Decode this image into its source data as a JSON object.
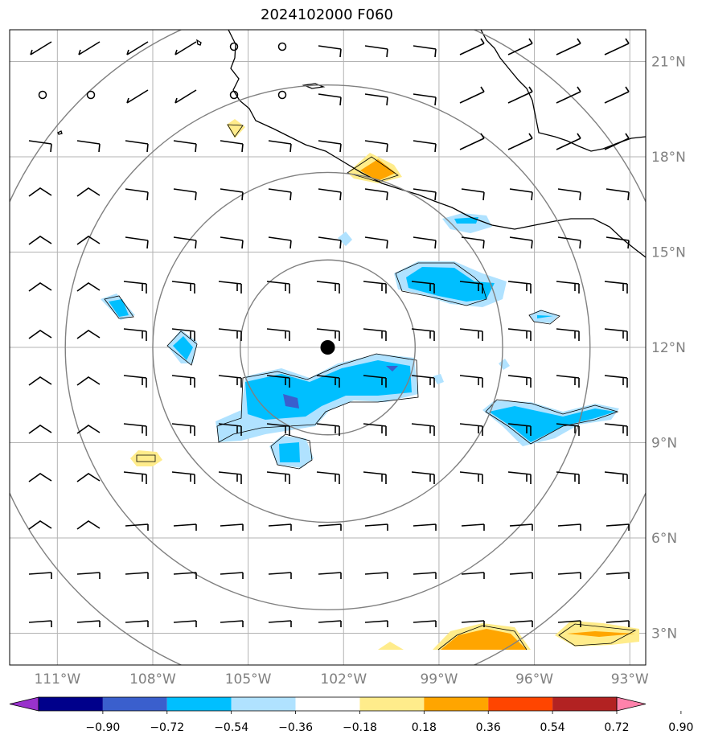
{
  "title": "2024102000 F060",
  "lat_ticks": [
    {
      "label": "21°N",
      "value": 21
    },
    {
      "label": "18°N",
      "value": 18
    },
    {
      "label": "15°N",
      "value": 15
    },
    {
      "label": "12°N",
      "value": 12
    },
    {
      "label": "9°N",
      "value": 9
    },
    {
      "label": "6°N",
      "value": 6
    },
    {
      "label": "3°N",
      "value": 3
    }
  ],
  "lon_ticks": [
    {
      "label": "111°W",
      "value": -111
    },
    {
      "label": "108°W",
      "value": -108
    },
    {
      "label": "105°W",
      "value": -105
    },
    {
      "label": "102°W",
      "value": -102
    },
    {
      "label": "99°W",
      "value": -99
    },
    {
      "label": "96°W",
      "value": -96
    },
    {
      "label": "93°W",
      "value": -93
    }
  ],
  "extent": {
    "lon_min": -112.5,
    "lon_max": -92.5,
    "lat_min": 2.0,
    "lat_max": 22.0
  },
  "storm_center": {
    "lon": -102.5,
    "lat": 12.0
  },
  "range_rings_deg": [
    2.75,
    5.5,
    8.25,
    11.0
  ],
  "colorbar": {
    "labels": [
      "−0.90",
      "−0.72",
      "−0.54",
      "−0.36",
      "−0.18",
      "0.18",
      "0.36",
      "0.54",
      "0.72",
      "0.90"
    ],
    "colors": [
      "#9932cc",
      "#00008b",
      "#3a5fcd",
      "#00bfff",
      "#b0e2ff",
      "#ffffff",
      "#ffec8b",
      "#ffa500",
      "#ff4500",
      "#b22222",
      "#ff82ab"
    ]
  },
  "colors": {
    "grid": "#b3b3b3",
    "rings": "#808080",
    "coast": "#000000",
    "tick_label": "#808080"
  }
}
